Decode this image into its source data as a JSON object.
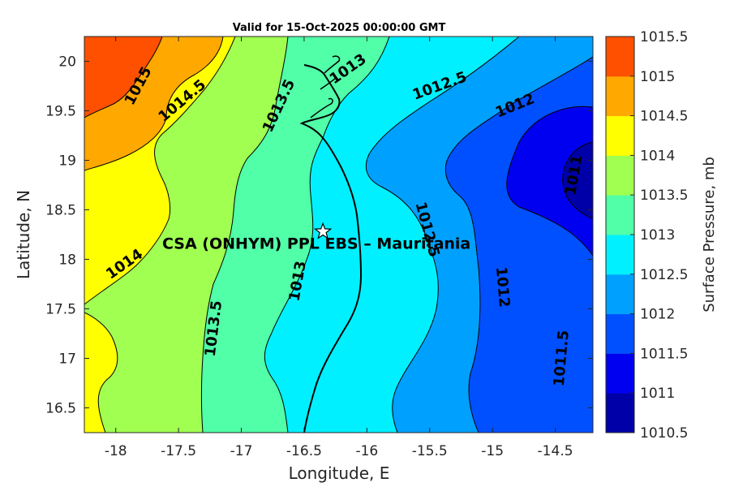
{
  "chart_data": {
    "type": "contour",
    "title": "Valid for 15-Oct-2025 00:00:00 GMT",
    "xlabel": "Longitude, E",
    "ylabel": "Latitude, N",
    "xlim": [
      -18.25,
      -14.2
    ],
    "ylim": [
      16.25,
      20.25
    ],
    "xticks": [
      -18,
      -17.5,
      -17,
      -16.5,
      -16,
      -15.5,
      -15,
      -14.5
    ],
    "xtick_labels": [
      "-18",
      "-17.5",
      "-17",
      "-16.5",
      "-16",
      "-15.5",
      "-15",
      "-14.5"
    ],
    "yticks": [
      16.5,
      17,
      17.5,
      18,
      18.5,
      19,
      19.5,
      20
    ],
    "ytick_labels": [
      "16.5",
      "17",
      "17.5",
      "18",
      "18.5",
      "19",
      "19.5",
      "20"
    ],
    "colorbar": {
      "label": "Surface Pressure, mb",
      "levels": [
        1010.5,
        1011,
        1011.5,
        1012,
        1012.5,
        1013,
        1013.5,
        1014,
        1014.5,
        1015,
        1015.5
      ],
      "tick_labels": [
        "1010.5",
        "1011",
        "1011.5",
        "1012",
        "1012.5",
        "1013",
        "1013.5",
        "1014",
        "1014.5",
        "1015",
        "1015.5"
      ],
      "colors": [
        "#0000a8",
        "#0000f0",
        "#0050ff",
        "#00a0ff",
        "#00f0ff",
        "#50ffa8",
        "#a0ff50",
        "#ffff00",
        "#ffa800",
        "#ff5000",
        "#ff0000"
      ]
    },
    "contour_labels": [
      {
        "text": "1015",
        "lon": -17.82,
        "lat": 19.75,
        "rot": -62
      },
      {
        "text": "1014.5",
        "lon": -17.47,
        "lat": 19.6,
        "rot": -40
      },
      {
        "text": "1013.5",
        "lon": -16.7,
        "lat": 19.55,
        "rot": -65
      },
      {
        "text": "1013",
        "lon": -16.15,
        "lat": 19.92,
        "rot": -35
      },
      {
        "text": "1012.5",
        "lon": -15.42,
        "lat": 19.75,
        "rot": -20
      },
      {
        "text": "1012",
        "lon": -14.82,
        "lat": 19.55,
        "rot": -22
      },
      {
        "text": "1011",
        "lon": -14.35,
        "lat": 18.85,
        "rot": -80
      },
      {
        "text": "1014",
        "lon": -17.93,
        "lat": 17.95,
        "rot": -35
      },
      {
        "text": "1013.5",
        "lon": -17.22,
        "lat": 17.3,
        "rot": -83
      },
      {
        "text": "1013",
        "lon": -16.55,
        "lat": 17.78,
        "rot": -80
      },
      {
        "text": "1012.5",
        "lon": -15.52,
        "lat": 18.3,
        "rot": 75
      },
      {
        "text": "1012",
        "lon": -14.92,
        "lat": 17.72,
        "rot": 85
      },
      {
        "text": "1011.5",
        "lon": -14.45,
        "lat": 17.0,
        "rot": -85
      }
    ],
    "station": {
      "name": "CSA (ONHYM) PPL EBS  – Mauritania",
      "lon": -16.35,
      "lat": 18.28
    }
  }
}
